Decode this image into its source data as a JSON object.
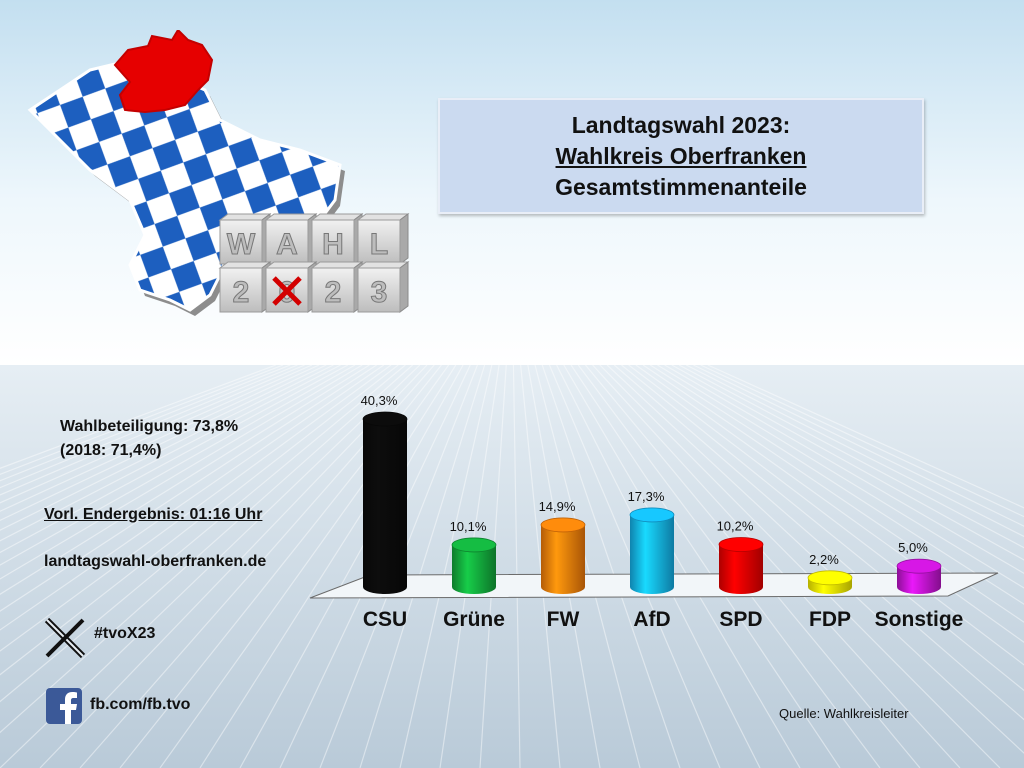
{
  "title": {
    "line1": "Landtagswahl 2023:",
    "line2": "Wahlkreis Oberfranken",
    "line3": "Gesamtstimmenanteile"
  },
  "logo_text": {
    "row1": [
      "W",
      "A",
      "H",
      "L"
    ],
    "row2": [
      "2",
      "0",
      "2",
      "3"
    ]
  },
  "turnout": {
    "current": "Wahlbeteiligung: 73,8%",
    "previous": "(2018: 71,4%)"
  },
  "result_status": "Vorl. Endergebnis: 01:16 Uhr",
  "website": "landtagswahl-oberfranken.de",
  "social": {
    "x_icon": "x-logo-icon",
    "x_tag": "#tvoX23",
    "fb_icon": "facebook-icon",
    "fb_link": "fb.com/fb.tvo"
  },
  "source": "Quelle: Wahlkreisleiter",
  "colors": {
    "map_blue": "#1d5fbf",
    "oberfranken_red": "#e60000",
    "title_bg": "#cbdaf0"
  },
  "chart_data": {
    "type": "bar",
    "categories": [
      "CSU",
      "Grüne",
      "FW",
      "AfD",
      "SPD",
      "FDP",
      "Sonstige"
    ],
    "values": [
      40.3,
      10.1,
      14.9,
      17.3,
      10.2,
      2.2,
      5.0
    ],
    "value_labels": [
      "40,3%",
      "10,1%",
      "14,9%",
      "17,3%",
      "10,2%",
      "2,2%",
      "5,0%"
    ],
    "colors": [
      "#0a0a0a",
      "#12a43a",
      "#f07a0a",
      "#14aee8",
      "#e60000",
      "#f2ea00",
      "#bb14c8"
    ],
    "ylim": [
      0,
      42
    ],
    "grid": false,
    "legend": "none"
  }
}
